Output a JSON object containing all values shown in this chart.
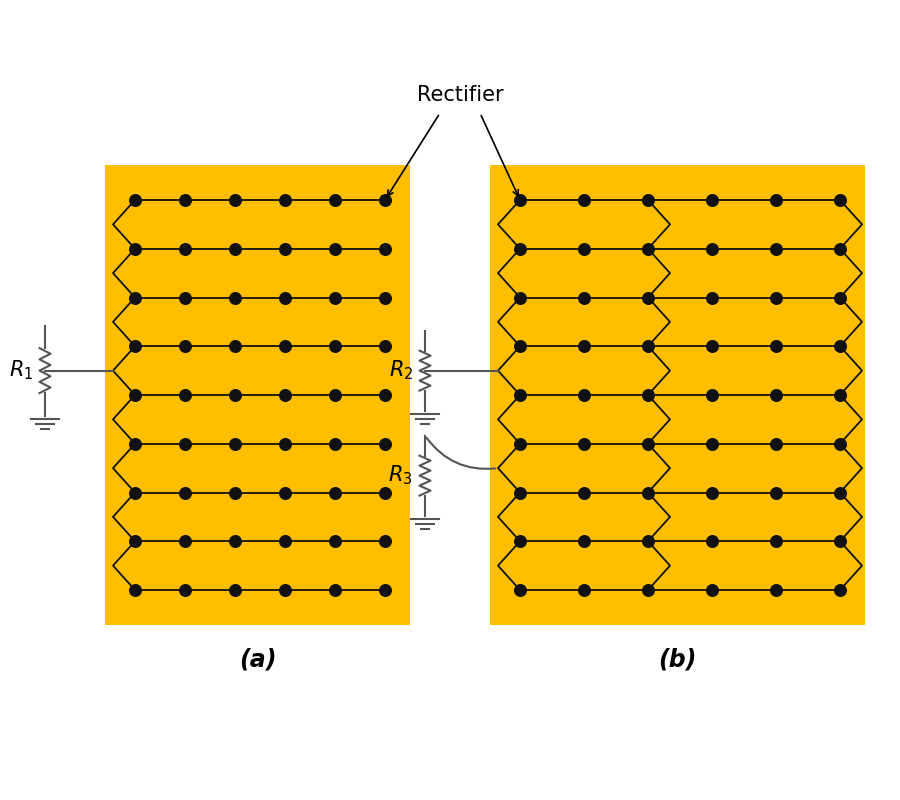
{
  "bg_color": "#FFBF00",
  "dot_color": "#111111",
  "line_color": "#111111",
  "panel_a_label": "(a)",
  "panel_b_label": "(b)",
  "rectifier_label": "Rectifier",
  "r1_label": "$R_1$",
  "r2_label": "$R_2$",
  "r3_label": "$R_3$",
  "rows": 9,
  "cols": 6,
  "dot_size": 70,
  "font_size": 15,
  "label_font_size": 17
}
